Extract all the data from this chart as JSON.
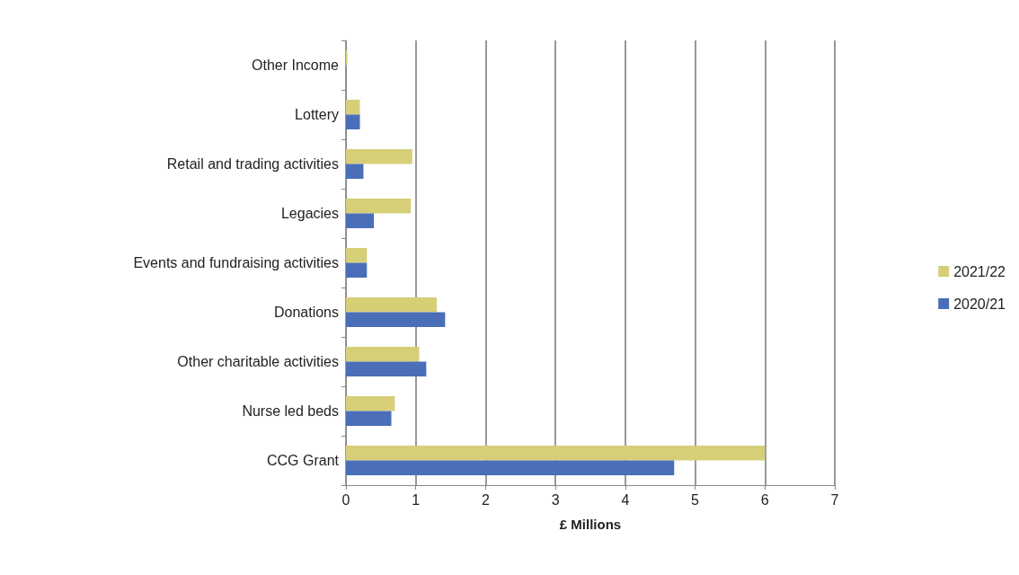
{
  "chart_data": {
    "type": "bar",
    "orientation": "horizontal",
    "xlabel": "£ Millions",
    "categories": [
      "Other Income",
      "Lottery",
      "Retail and trading activities",
      "Legacies",
      "Events and fundraising activities",
      "Donations",
      "Other charitable activities",
      "Nurse led beds",
      "CCG Grant"
    ],
    "series": [
      {
        "name": "2021/22",
        "color": "#d6cf78",
        "values": [
          0.02,
          0.2,
          0.95,
          0.93,
          0.3,
          1.3,
          1.05,
          0.7,
          6.0
        ]
      },
      {
        "name": "2020/21",
        "color": "#4a6fb8",
        "values": [
          0,
          0.2,
          0.25,
          0.4,
          0.3,
          1.42,
          1.15,
          0.65,
          4.7
        ]
      }
    ],
    "xlim": [
      0,
      7
    ],
    "xticks": [
      0,
      1,
      2,
      3,
      4,
      5,
      6,
      7
    ],
    "grid": "x",
    "legend": "right"
  }
}
